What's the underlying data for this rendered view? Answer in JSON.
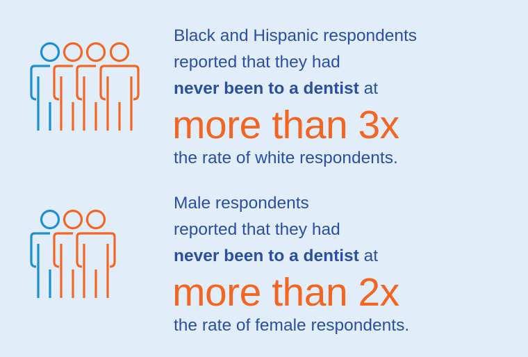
{
  "colors": {
    "background": "#e1eef9",
    "text_blue": "#2b4fa0",
    "accent_orange": "#f26522",
    "figure_blue": "#1b8fd2"
  },
  "blocks": [
    {
      "icon": "group-of-four-people-icon",
      "line1": "Black and Hispanic respondents",
      "line2": "reported that they had",
      "bold": "never been to a dentist",
      "bold_suffix": " at",
      "big": "more than 3x",
      "line_last": "the rate of white respondents."
    },
    {
      "icon": "group-of-three-people-icon",
      "line1": "Male respondents",
      "line2": "reported that they had",
      "bold": "never been to a dentist",
      "bold_suffix": " at",
      "big": "more than 2x",
      "line_last": "the rate of female respondents."
    }
  ]
}
